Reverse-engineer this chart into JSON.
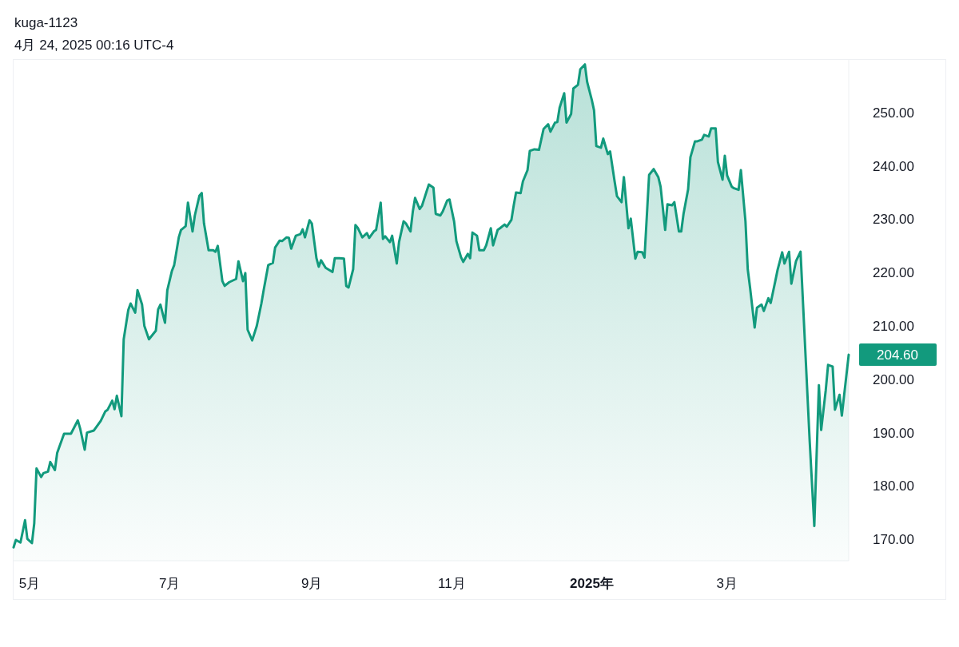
{
  "chart_data": {
    "type": "area",
    "title": "kuga-1123",
    "subtitle": "4月 24, 2025 00:16 UTC-4",
    "color": "#129a7d",
    "x": [
      "2024-04-24",
      "2024-04-25",
      "2024-04-27",
      "2024-04-29",
      "2024-04-30",
      "2024-05-02",
      "2024-05-03",
      "2024-05-04",
      "2024-05-06",
      "2024-05-07",
      "2024-05-09",
      "2024-05-10",
      "2024-05-12",
      "2024-05-13",
      "2024-05-14",
      "2024-05-16",
      "2024-05-19",
      "2024-05-22",
      "2024-05-23",
      "2024-05-25",
      "2024-05-26",
      "2024-05-29",
      "2024-06-01",
      "2024-06-03",
      "2024-06-04",
      "2024-06-06",
      "2024-06-07",
      "2024-06-08",
      "2024-06-10",
      "2024-06-11",
      "2024-06-13",
      "2024-06-14",
      "2024-06-16",
      "2024-06-17",
      "2024-06-19",
      "2024-06-20",
      "2024-06-22",
      "2024-06-25",
      "2024-06-26",
      "2024-06-27",
      "2024-06-29",
      "2024-06-30",
      "2024-07-02",
      "2024-07-03",
      "2024-07-05",
      "2024-07-06",
      "2024-07-08",
      "2024-07-09",
      "2024-07-11",
      "2024-07-12",
      "2024-07-14",
      "2024-07-15",
      "2024-07-16",
      "2024-07-18",
      "2024-07-20",
      "2024-07-21",
      "2024-07-22",
      "2024-07-24",
      "2024-07-25",
      "2024-07-27",
      "2024-07-30",
      "2024-07-31",
      "2024-08-02",
      "2024-08-03",
      "2024-08-04",
      "2024-08-06",
      "2024-08-08",
      "2024-08-10",
      "2024-08-11",
      "2024-08-13",
      "2024-08-15",
      "2024-08-16",
      "2024-08-18",
      "2024-08-19",
      "2024-08-21",
      "2024-08-22",
      "2024-08-23",
      "2024-08-25",
      "2024-08-27",
      "2024-08-28",
      "2024-08-29",
      "2024-08-31",
      "2024-09-01",
      "2024-09-03",
      "2024-09-04",
      "2024-09-05",
      "2024-09-07",
      "2024-09-10",
      "2024-09-11",
      "2024-09-13",
      "2024-09-15",
      "2024-09-16",
      "2024-09-17",
      "2024-09-19",
      "2024-09-20",
      "2024-09-21",
      "2024-09-23",
      "2024-09-25",
      "2024-09-26",
      "2024-09-28",
      "2024-09-29",
      "2024-10-01",
      "2024-10-02",
      "2024-10-03",
      "2024-10-05",
      "2024-10-06",
      "2024-10-08",
      "2024-10-09",
      "2024-10-11",
      "2024-10-12",
      "2024-10-14",
      "2024-10-15",
      "2024-10-16",
      "2024-10-18",
      "2024-10-19",
      "2024-10-21",
      "2024-10-22",
      "2024-10-24",
      "2024-10-25",
      "2024-10-27",
      "2024-10-28",
      "2024-10-30",
      "2024-10-31",
      "2024-11-02",
      "2024-11-03",
      "2024-11-05",
      "2024-11-06",
      "2024-11-08",
      "2024-11-09",
      "2024-11-10",
      "2024-11-12",
      "2024-11-13",
      "2024-11-15",
      "2024-11-16",
      "2024-11-18",
      "2024-11-19",
      "2024-11-21",
      "2024-11-22",
      "2024-11-24",
      "2024-11-25",
      "2024-11-27",
      "2024-11-28",
      "2024-11-29",
      "2024-12-01",
      "2024-12-02",
      "2024-12-04",
      "2024-12-05",
      "2024-12-07",
      "2024-12-09",
      "2024-12-11",
      "2024-12-13",
      "2024-12-14",
      "2024-12-16",
      "2024-12-17",
      "2024-12-18",
      "2024-12-20",
      "2024-12-21",
      "2024-12-23",
      "2024-12-24",
      "2024-12-26",
      "2024-12-27",
      "2024-12-29",
      "2024-12-30",
      "2025-01-01",
      "2025-01-02",
      "2025-01-03",
      "2025-01-05",
      "2025-01-06",
      "2025-01-08",
      "2025-01-09",
      "2025-01-11",
      "2025-01-12",
      "2025-01-14",
      "2025-01-15",
      "2025-01-17",
      "2025-01-18",
      "2025-01-20",
      "2025-01-21",
      "2025-01-23",
      "2025-01-24",
      "2025-01-26",
      "2025-01-28",
      "2025-01-30",
      "2025-01-31",
      "2025-02-02",
      "2025-02-03",
      "2025-02-05",
      "2025-02-06",
      "2025-02-08",
      "2025-02-09",
      "2025-02-10",
      "2025-02-12",
      "2025-02-13",
      "2025-02-15",
      "2025-02-16",
      "2025-02-18",
      "2025-02-19",
      "2025-02-21",
      "2025-02-22",
      "2025-02-24",
      "2025-02-25",
      "2025-02-27",
      "2025-02-28",
      "2025-03-01",
      "2025-03-03",
      "2025-03-04",
      "2025-03-06",
      "2025-03-07",
      "2025-03-09",
      "2025-03-10",
      "2025-03-11",
      "2025-03-13",
      "2025-03-14",
      "2025-03-16",
      "2025-03-17",
      "2025-03-19",
      "2025-03-20",
      "2025-03-22",
      "2025-03-23",
      "2025-03-25",
      "2025-03-26",
      "2025-03-28",
      "2025-03-29",
      "2025-03-31",
      "2025-04-02",
      "2025-04-06",
      "2025-04-08",
      "2025-04-10",
      "2025-04-11",
      "2025-04-13",
      "2025-04-14",
      "2025-04-16",
      "2025-04-17",
      "2025-04-19",
      "2025-04-20",
      "2025-04-23"
    ],
    "values": [
      168.5,
      169.9,
      169.4,
      173.6,
      170.1,
      169.3,
      173.0,
      183.3,
      181.7,
      182.4,
      182.7,
      184.5,
      183.0,
      186.2,
      187.4,
      189.8,
      189.8,
      192.3,
      190.8,
      186.8,
      190.0,
      190.4,
      192.2,
      194.0,
      194.3,
      196.0,
      194.4,
      196.9,
      193.1,
      207.5,
      213.0,
      214.2,
      212.5,
      216.7,
      214.0,
      210.0,
      207.5,
      209.1,
      213.1,
      214.0,
      210.6,
      216.7,
      220.3,
      221.4,
      226.6,
      228.0,
      228.7,
      233.1,
      227.7,
      230.7,
      234.4,
      234.9,
      229.2,
      224.2,
      224.2,
      223.9,
      225.0,
      218.4,
      217.5,
      218.2,
      218.8,
      222.1,
      218.4,
      219.9,
      209.3,
      207.3,
      210.0,
      214.2,
      216.7,
      221.4,
      221.8,
      224.7,
      226.0,
      225.9,
      226.6,
      226.5,
      224.5,
      226.9,
      227.2,
      228.1,
      226.6,
      229.8,
      229.2,
      222.7,
      221.1,
      222.3,
      220.9,
      220.1,
      222.7,
      222.7,
      222.6,
      217.5,
      217.2,
      220.6,
      228.9,
      228.4,
      226.6,
      227.4,
      226.5,
      227.7,
      228.0,
      233.1,
      226.3,
      226.8,
      225.7,
      226.9,
      221.7,
      225.7,
      229.6,
      229.2,
      227.7,
      231.4,
      234.0,
      231.9,
      232.5,
      235.2,
      236.5,
      235.9,
      231.0,
      230.7,
      231.4,
      233.5,
      233.7,
      229.6,
      225.9,
      222.9,
      222.0,
      223.5,
      222.7,
      227.5,
      226.9,
      224.2,
      224.2,
      225.1,
      228.3,
      225.1,
      228.0,
      228.3,
      229.0,
      228.6,
      229.9,
      232.6,
      235.0,
      234.9,
      237.1,
      239.2,
      242.8,
      243.1,
      243.0,
      246.9,
      247.8,
      246.4,
      248.1,
      248.2,
      250.9,
      253.6,
      248.1,
      249.7,
      254.5,
      255.2,
      258.1,
      259.0,
      255.7,
      252.4,
      250.4,
      243.7,
      243.4,
      245.1,
      242.2,
      242.7,
      237.0,
      234.3,
      233.2,
      237.9,
      228.3,
      230.1,
      222.6,
      223.9,
      223.8,
      222.8,
      238.3,
      239.4,
      237.9,
      236.1,
      228.0,
      232.8,
      232.6,
      233.2,
      227.7,
      227.7,
      231.0,
      235.6,
      241.6,
      244.6,
      244.6,
      244.9,
      245.8,
      245.5,
      247.0,
      247.0,
      240.7,
      237.4,
      241.9,
      238.2,
      236.1,
      235.8,
      235.5,
      239.2,
      229.6,
      220.6,
      217.2,
      209.7,
      213.4,
      214.0,
      212.8,
      215.2,
      214.3,
      218.4,
      220.5,
      223.8,
      221.7,
      223.9,
      217.9,
      222.1,
      223.9,
      188.3,
      172.5,
      198.9,
      190.5,
      198.0,
      202.7,
      202.4,
      194.3,
      197.1,
      193.2,
      204.6
    ],
    "xticks": [
      {
        "value": "2024-05-01",
        "label": "5月"
      },
      {
        "value": "2024-07-01",
        "label": "7月"
      },
      {
        "value": "2024-09-01",
        "label": "9月"
      },
      {
        "value": "2024-11-01",
        "label": "11月"
      },
      {
        "value": "2025-01-01",
        "label": "2025年"
      },
      {
        "value": "2025-03-01",
        "label": "3月"
      }
    ],
    "xlim": [
      "2024-04-24",
      "2025-04-23"
    ],
    "ylim": [
      166,
      260
    ],
    "yticks": [
      {
        "value": 170,
        "label": "170.00"
      },
      {
        "value": 180,
        "label": "180.00"
      },
      {
        "value": 190,
        "label": "190.00"
      },
      {
        "value": 200,
        "label": "200.00"
      },
      {
        "value": 210,
        "label": "210.00"
      },
      {
        "value": 220,
        "label": "220.00"
      },
      {
        "value": 230,
        "label": "230.00"
      },
      {
        "value": 240,
        "label": "240.00"
      },
      {
        "value": 250,
        "label": "250.00"
      }
    ],
    "annotations": [
      {
        "text": "204.60",
        "x": "2025-04-23",
        "y": 204.6
      }
    ]
  }
}
